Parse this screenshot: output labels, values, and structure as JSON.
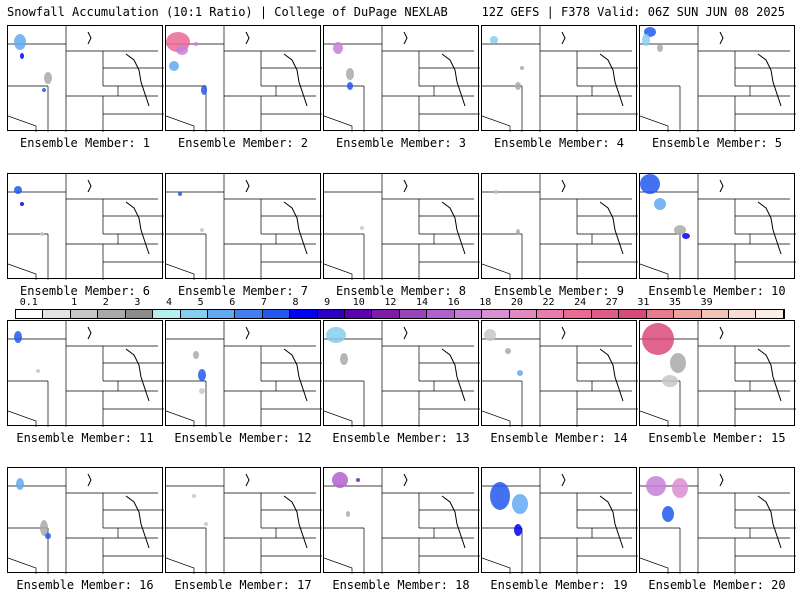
{
  "header": {
    "title": "Snowfall Accumulation (10:1 Ratio) | College of DuPage NEXLAB",
    "run_info": "12Z GEFS | F378 Valid: 06Z SUN JUN 08 2025"
  },
  "colorbar": {
    "labels": [
      "0.1",
      "1",
      "2",
      "3",
      "4",
      "5",
      "6",
      "7",
      "8",
      "9",
      "10",
      "12",
      "14",
      "16",
      "18",
      "20",
      "22",
      "24",
      "27",
      "31",
      "35",
      "39"
    ],
    "colors": [
      "#ffffff",
      "#e3e3e3",
      "#c7c7c7",
      "#a9a9a9",
      "#8c8c8c",
      "#b4f0f0",
      "#87cdef",
      "#63a9f1",
      "#417ff2",
      "#2158f0",
      "#0000f5",
      "#2b00c2",
      "#5c00b0",
      "#7d1ca8",
      "#9a44b8",
      "#b25fcf",
      "#c77fd9",
      "#d98fd2",
      "#e28ac0",
      "#e97dad",
      "#ea6a96",
      "#e25a86",
      "#d9497a",
      "#e57d8e",
      "#eea3a0",
      "#f3c5b7",
      "#f8ddd0",
      "#fbeee6"
    ]
  },
  "panels": [
    {
      "caption": "Ensemble Member: 1"
    },
    {
      "caption": "Ensemble Member: 2"
    },
    {
      "caption": "Ensemble Member: 3"
    },
    {
      "caption": "Ensemble Member: 4"
    },
    {
      "caption": "Ensemble Member: 5"
    },
    {
      "caption": "Ensemble Member: 6"
    },
    {
      "caption": "Ensemble Member: 7"
    },
    {
      "caption": "Ensemble Member: 8"
    },
    {
      "caption": "Ensemble Member: 9"
    },
    {
      "caption": "Ensemble Member: 10"
    },
    {
      "caption": "Ensemble Member: 11"
    },
    {
      "caption": "Ensemble Member: 12"
    },
    {
      "caption": "Ensemble Member: 13"
    },
    {
      "caption": "Ensemble Member: 14"
    },
    {
      "caption": "Ensemble Member: 15"
    },
    {
      "caption": "Ensemble Member: 16"
    },
    {
      "caption": "Ensemble Member: 17"
    },
    {
      "caption": "Ensemble Member: 18"
    },
    {
      "caption": "Ensemble Member: 19"
    },
    {
      "caption": "Ensemble Member: 20"
    }
  ]
}
